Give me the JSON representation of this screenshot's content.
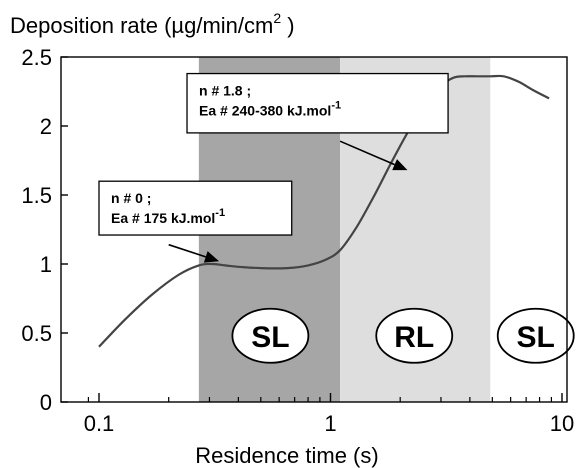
{
  "chart_data": {
    "type": "line",
    "title": "",
    "ylabel": "Deposition rate (µg/min/cm² )",
    "ylabel_parts": [
      "Deposition rate (",
      "µ",
      "g/min/cm",
      "2",
      " )"
    ],
    "xlabel": "Residence time (s)",
    "x_scale": "log",
    "xlim": [
      0.08,
      11
    ],
    "ylim": [
      0,
      2.5
    ],
    "x_ticks": [
      {
        "value": 0.1,
        "label": "0.1"
      },
      {
        "value": 1,
        "label": "1"
      },
      {
        "value": 10,
        "label": "10"
      }
    ],
    "y_ticks": [
      {
        "value": 0,
        "label": "0"
      },
      {
        "value": 0.5,
        "label": "0.5"
      },
      {
        "value": 1,
        "label": "1"
      },
      {
        "value": 1.5,
        "label": "1.5"
      },
      {
        "value": 2,
        "label": "2"
      },
      {
        "value": 2.5,
        "label": "2.5"
      }
    ],
    "grid": false,
    "series": [
      {
        "x": [
          0.1,
          0.13,
          0.17,
          0.22,
          0.27,
          0.31,
          0.35,
          0.4,
          0.5,
          0.65,
          0.8,
          0.95,
          1.1,
          1.3,
          1.55,
          1.85,
          2.2,
          2.6,
          3.0,
          3.4,
          3.8,
          4.3,
          4.9,
          5.6,
          6.5,
          7.5,
          8.8
        ],
        "y": [
          0.4,
          0.6,
          0.78,
          0.92,
          0.99,
          1.0,
          0.99,
          0.98,
          0.97,
          0.97,
          0.99,
          1.03,
          1.1,
          1.27,
          1.5,
          1.75,
          1.98,
          2.17,
          2.29,
          2.35,
          2.36,
          2.36,
          2.36,
          2.36,
          2.32,
          2.26,
          2.2
        ],
        "color": "#444444"
      }
    ],
    "regions": [
      {
        "x_start": 0.27,
        "x_end": 1.1,
        "color": "#a6a6a6",
        "label": "SL",
        "label_x": 0.55,
        "label_y": 0.48
      },
      {
        "x_start": 1.1,
        "x_end": 4.9,
        "color": "#dedede",
        "label": "RL",
        "label_x": 2.3,
        "label_y": 0.48
      },
      {
        "x_start": 4.9,
        "x_end": 11,
        "color": "#ffffff",
        "label": "SL",
        "label_x": 7.7,
        "label_y": 0.48
      }
    ],
    "annotations": [
      {
        "lines": [
          {
            "text": "n # 0 ;",
            "sup": ""
          },
          {
            "text": "Ea # 175 kJ.mol",
            "sup": "-1"
          }
        ],
        "box": {
          "x_left": 0.1,
          "x_right": 0.68,
          "y_top": 1.6,
          "y_bottom": 1.21
        },
        "arrow": {
          "from": [
            0.2,
            1.14
          ],
          "to": [
            0.33,
            1.02
          ]
        }
      },
      {
        "lines": [
          {
            "text": "n # 1.8 ;",
            "sup": ""
          },
          {
            "text": "Ea # 240-380 kJ.mol",
            "sup": "-1"
          }
        ],
        "box": {
          "x_left": 0.24,
          "x_right": 3.22,
          "y_top": 2.38,
          "y_bottom": 1.95
        },
        "arrow": {
          "from": [
            1.1,
            1.89
          ],
          "to": [
            2.15,
            1.68
          ]
        }
      }
    ]
  },
  "style": {
    "line_color": "#444444",
    "box_border": "#000000",
    "box_fill": "#ffffff",
    "axis_color": "#000000"
  }
}
